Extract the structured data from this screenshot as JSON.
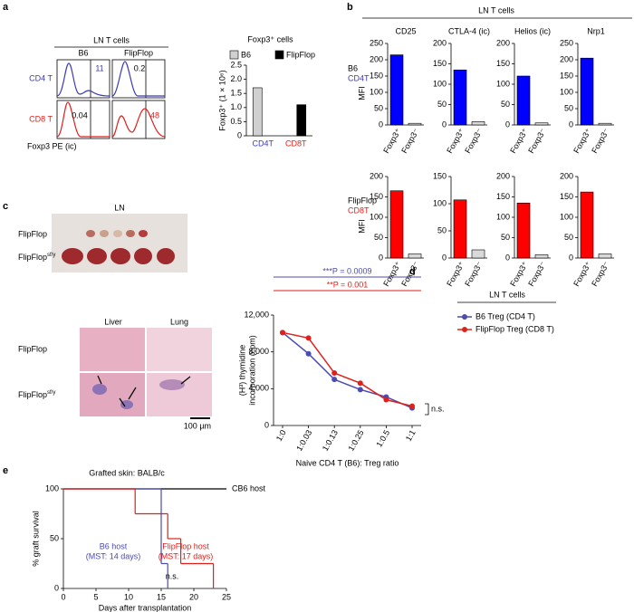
{
  "panel_labels": [
    "a",
    "b",
    "c",
    "d",
    "e"
  ],
  "flow": {
    "title": "LN T cells",
    "columns": [
      "B6",
      "FlipFlop"
    ],
    "rows": [
      "CD4 T",
      "CD8 T"
    ],
    "row_colors": [
      "#3b3bb3",
      "#e0201b"
    ],
    "percentages": [
      [
        11,
        0.2
      ],
      [
        0.04,
        48
      ]
    ],
    "x_label": "Foxp3 PE (ic)"
  },
  "panel_b": {
    "header": "LN T cells",
    "rows": [
      [
        "B6",
        "CD4T"
      ],
      [
        "FlipFlop",
        "CD8T"
      ]
    ]
  },
  "photo": {
    "title": "LN",
    "rows": [
      {
        "text": "FlipFlop"
      },
      {
        "text": "FlipFlop",
        "sup": "sf/y"
      }
    ]
  },
  "histology": {
    "columns": [
      "Liver",
      "Lung"
    ],
    "rows": [
      {
        "text": "FlipFlop"
      },
      {
        "text": "FlipFlop",
        "sup": "sf/y"
      }
    ],
    "scale": "100 µm"
  },
  "chart_data": [
    {
      "type": "grouped_bar",
      "title": "Foxp3⁺ cells",
      "ylabel": "Foxp3⁺ (1 × 10⁶)",
      "categories": [
        "CD4T",
        "CD8T"
      ],
      "category_colors": [
        "#3b3bb3",
        "#e0201b"
      ],
      "series": [
        {
          "name": "B6",
          "color": "#d0d0d0",
          "values": [
            1.7,
            0
          ]
        },
        {
          "name": "FlipFlop",
          "color": "#000000",
          "values": [
            0,
            1.1
          ]
        }
      ],
      "ylim": [
        0,
        2.5
      ],
      "yticks": [
        0,
        0.5,
        {
          "value": 1,
          "label": "1.0"
        },
        1.5,
        {
          "value": 2,
          "label": "2.0"
        },
        2.5
      ]
    },
    {
      "type": "bar",
      "title": "CD25",
      "ylabel": "MFI",
      "categories": [
        "Foxp3⁺",
        "Foxp3⁻"
      ],
      "values": [
        215,
        5
      ],
      "colors": [
        "#0000ff",
        "#d9d9d9"
      ],
      "ylim": [
        0,
        250
      ],
      "yticks": [
        0,
        50,
        100,
        150,
        200,
        250
      ]
    },
    {
      "type": "bar",
      "title": "CTLA-4 (ic)",
      "categories": [
        "Foxp3⁺",
        "Foxp3⁻"
      ],
      "values": [
        135,
        8
      ],
      "colors": [
        "#0000ff",
        "#d9d9d9"
      ],
      "ylim": [
        0,
        200
      ],
      "yticks": [
        0,
        50,
        100,
        150,
        200
      ]
    },
    {
      "type": "bar",
      "title": "Helios (ic)",
      "categories": [
        "Foxp3⁺",
        "Foxp3⁻"
      ],
      "values": [
        120,
        5
      ],
      "colors": [
        "#0000ff",
        "#d9d9d9"
      ],
      "ylim": [
        0,
        200
      ],
      "yticks": [
        0,
        50,
        100,
        150,
        200
      ]
    },
    {
      "type": "bar",
      "title": "Nrp1",
      "categories": [
        "Foxp3⁺",
        "Foxp3⁻"
      ],
      "values": [
        205,
        5
      ],
      "colors": [
        "#0000ff",
        "#d9d9d9"
      ],
      "ylim": [
        0,
        250
      ],
      "yticks": [
        0,
        50,
        100,
        150,
        200,
        250
      ]
    },
    {
      "type": "bar",
      "ylabel": "MFI",
      "categories": [
        "Foxp3⁺",
        "Foxp3⁻"
      ],
      "values": [
        165,
        10
      ],
      "colors": [
        "#ff0000",
        "#d9d9d9"
      ],
      "ylim": [
        0,
        200
      ],
      "yticks": [
        0,
        50,
        100,
        150,
        200
      ]
    },
    {
      "type": "bar",
      "categories": [
        "Foxp3⁺",
        "Foxp3⁻"
      ],
      "values": [
        107,
        15
      ],
      "colors": [
        "#ff0000",
        "#d9d9d9"
      ],
      "ylim": [
        0,
        150
      ],
      "yticks": [
        0,
        50,
        100,
        150
      ]
    },
    {
      "type": "bar",
      "categories": [
        "Foxp3⁺",
        "Foxp3⁻"
      ],
      "values": [
        135,
        8
      ],
      "colors": [
        "#ff0000",
        "#d9d9d9"
      ],
      "ylim": [
        0,
        200
      ],
      "yticks": [
        0,
        50,
        100,
        150,
        200
      ]
    },
    {
      "type": "bar",
      "categories": [
        "Foxp3⁺",
        "Foxp3⁻"
      ],
      "values": [
        162,
        10
      ],
      "colors": [
        "#ff0000",
        "#d9d9d9"
      ],
      "ylim": [
        0,
        200
      ],
      "yticks": [
        0,
        50,
        100,
        150,
        200
      ]
    },
    {
      "type": "line",
      "ylabel": [
        "(H³) thymidine",
        "incorporation (cpm)"
      ],
      "xlabel": "Naive CD4 T (B6): Treg ratio",
      "categories": [
        "1:0",
        "1:0.03",
        "1:0.13",
        "1:0.25",
        "1:0.5",
        "1:1"
      ],
      "series": [
        {
          "name": "B6 Treg (CD4 T)",
          "color": "#4b4bb0",
          "values": [
            10100,
            7800,
            5000,
            3900,
            3100,
            1900
          ]
        },
        {
          "name": "FlipFlop Treg (CD8 T)",
          "color": "#e0201b",
          "values": [
            10100,
            9500,
            5700,
            4600,
            2800,
            2100
          ]
        }
      ],
      "ylim": [
        0,
        12000
      ],
      "yticks": [
        0,
        {
          "value": 4000,
          "label": "4,000"
        },
        {
          "value": 8000,
          "label": "8,000"
        },
        {
          "value": 12000,
          "label": "12,000"
        }
      ],
      "annotations": [
        {
          "text": "***P = 0.0009",
          "color": "#4b4bb0"
        },
        {
          "text": "**P = 0.001",
          "color": "#e0201b"
        }
      ],
      "legend_title": "LN T cells",
      "note": "n.s."
    },
    {
      "type": "step",
      "title": "Grafted skin: BALB/c",
      "ylabel": "% graft survival",
      "xlabel": "Days after transplantation",
      "series": [
        {
          "name": "CB6 host",
          "color": "#000000",
          "x": [
            0,
            25
          ],
          "values": [
            100,
            100
          ]
        },
        {
          "name": "B6 host",
          "color": "#4b4bb0",
          "note": "(MST: 14 days)",
          "x": [
            0,
            15,
            16
          ],
          "values": [
            100,
            25,
            0
          ]
        },
        {
          "name": "FlipFlop host",
          "color": "#e0201b",
          "note": "(MST: 17 days)",
          "x": [
            0,
            11,
            16,
            18,
            23
          ],
          "values": [
            100,
            75,
            50,
            25,
            0
          ]
        }
      ],
      "xlim": [
        0,
        25
      ],
      "xticks": [
        0,
        5,
        10,
        15,
        20,
        25
      ],
      "ylim": [
        0,
        100
      ],
      "yticks": [
        0,
        50,
        100
      ],
      "note": "n.s."
    }
  ]
}
